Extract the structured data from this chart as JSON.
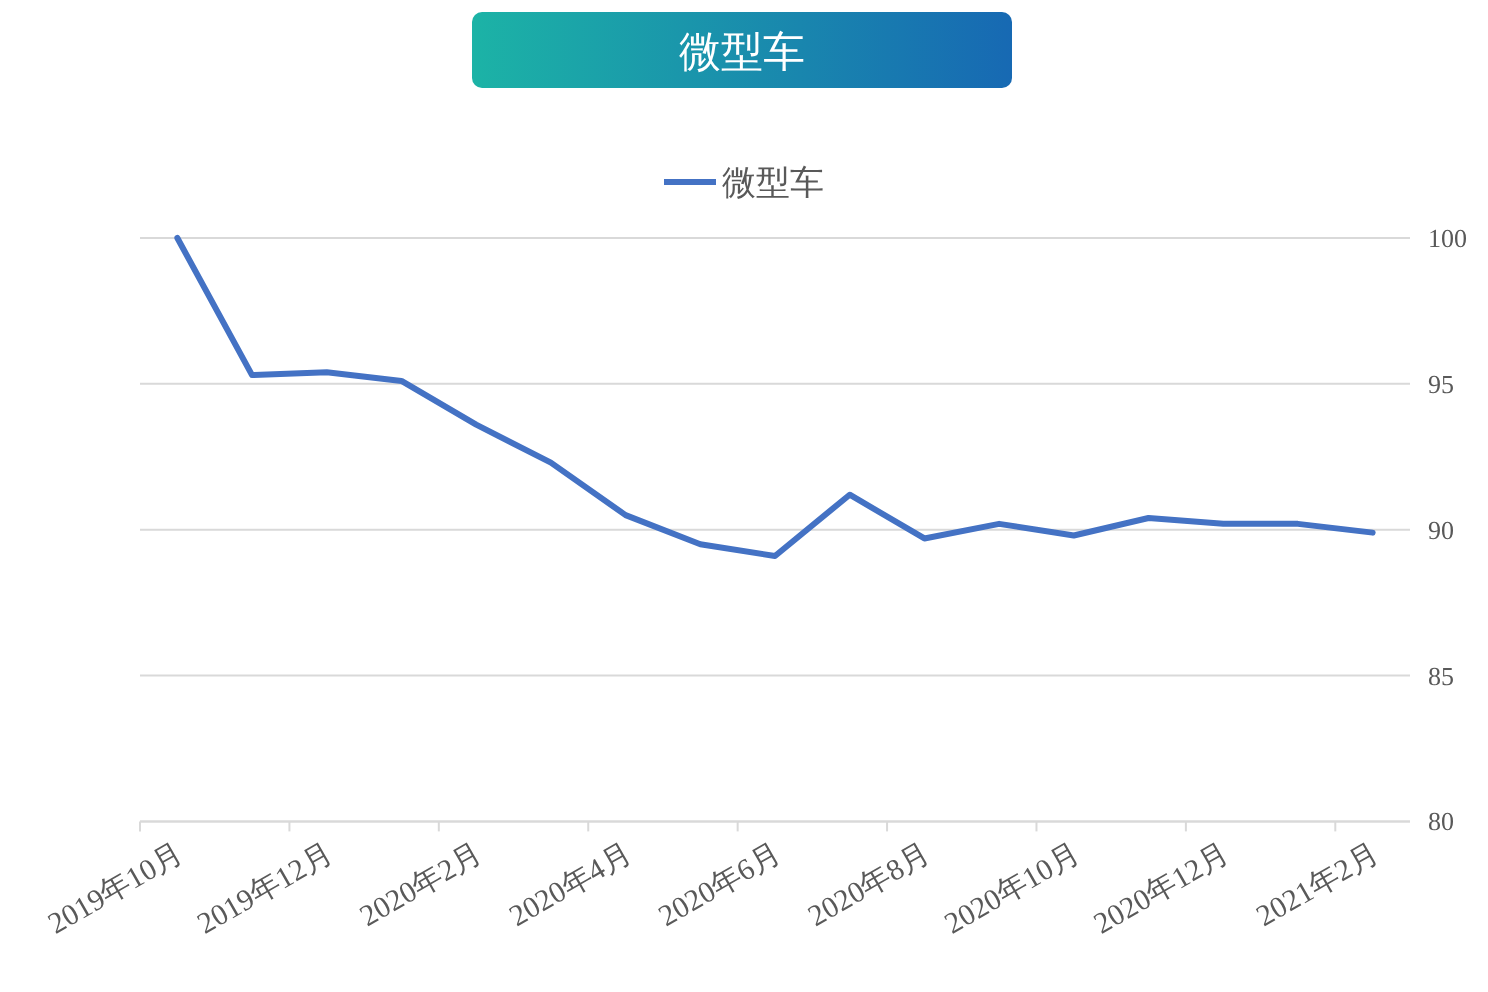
{
  "chart_data": {
    "type": "line",
    "title": "微型车",
    "categories": [
      "2019年10月",
      null,
      "2019年12月",
      null,
      "2020年2月",
      null,
      "2020年4月",
      null,
      "2020年6月",
      null,
      "2020年8月",
      null,
      "2020年10月",
      null,
      "2020年12月",
      null,
      "2021年2月"
    ],
    "series": [
      {
        "name": "微型车",
        "color": "#4472c4",
        "values": [
          100,
          95.3,
          95.4,
          95.1,
          93.6,
          92.3,
          90.5,
          89.5,
          89.1,
          91.2,
          89.7,
          90.2,
          89.8,
          90.4,
          90.2,
          90.2,
          89.9
        ]
      }
    ],
    "ylim": [
      80,
      100
    ],
    "yticks": [
      80,
      85,
      90,
      95,
      100
    ],
    "grid": "y",
    "legend": "top",
    "marker": "none",
    "line_style": "solid"
  }
}
